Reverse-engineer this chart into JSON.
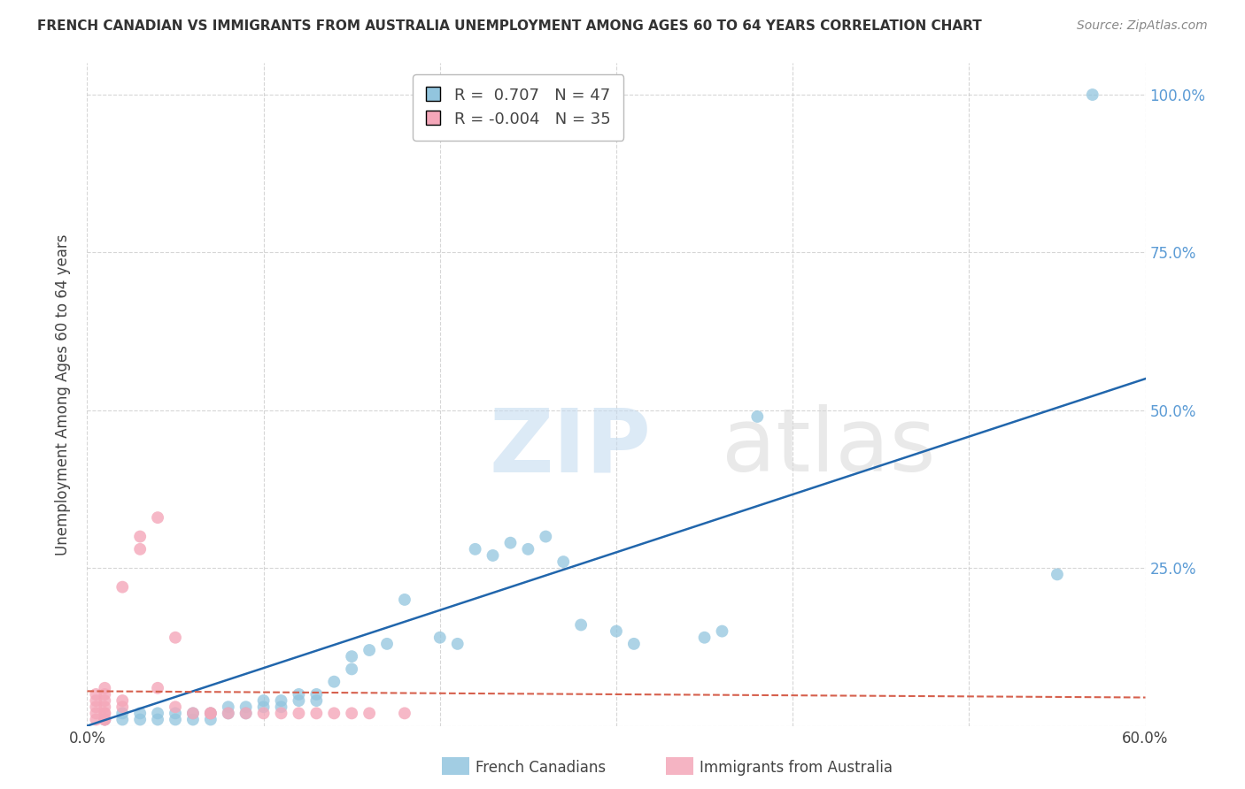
{
  "title": "FRENCH CANADIAN VS IMMIGRANTS FROM AUSTRALIA UNEMPLOYMENT AMONG AGES 60 TO 64 YEARS CORRELATION CHART",
  "source": "Source: ZipAtlas.com",
  "ylabel": "Unemployment Among Ages 60 to 64 years",
  "xlim": [
    0.0,
    0.6
  ],
  "ylim": [
    0.0,
    1.05
  ],
  "blue_color": "#92c5de",
  "pink_color": "#f4a7b9",
  "blue_line_color": "#2166ac",
  "pink_line_color": "#d6604d",
  "blue_R": 0.707,
  "blue_N": 47,
  "pink_R": -0.004,
  "pink_N": 35,
  "legend_label_blue": "French Canadians",
  "legend_label_pink": "Immigrants from Australia",
  "grid_color": "#cccccc",
  "background_color": "#ffffff",
  "right_axis_color": "#5b9bd5",
  "title_color": "#333333",
  "source_color": "#888888",
  "blue_scatter_x": [
    0.01,
    0.02,
    0.02,
    0.03,
    0.03,
    0.04,
    0.04,
    0.05,
    0.05,
    0.06,
    0.06,
    0.07,
    0.07,
    0.08,
    0.08,
    0.09,
    0.09,
    0.1,
    0.1,
    0.11,
    0.11,
    0.12,
    0.12,
    0.13,
    0.13,
    0.14,
    0.15,
    0.15,
    0.16,
    0.17,
    0.18,
    0.2,
    0.21,
    0.22,
    0.23,
    0.24,
    0.25,
    0.26,
    0.27,
    0.28,
    0.3,
    0.31,
    0.35,
    0.36,
    0.38,
    0.55,
    0.57
  ],
  "blue_scatter_y": [
    0.01,
    0.01,
    0.02,
    0.01,
    0.02,
    0.01,
    0.02,
    0.01,
    0.02,
    0.01,
    0.02,
    0.01,
    0.02,
    0.02,
    0.03,
    0.02,
    0.03,
    0.03,
    0.04,
    0.03,
    0.04,
    0.04,
    0.05,
    0.04,
    0.05,
    0.07,
    0.09,
    0.11,
    0.12,
    0.13,
    0.2,
    0.14,
    0.13,
    0.28,
    0.27,
    0.29,
    0.28,
    0.3,
    0.26,
    0.16,
    0.15,
    0.13,
    0.14,
    0.15,
    0.49,
    0.24,
    1.0
  ],
  "pink_scatter_x": [
    0.005,
    0.005,
    0.005,
    0.005,
    0.005,
    0.01,
    0.01,
    0.01,
    0.01,
    0.01,
    0.01,
    0.01,
    0.01,
    0.02,
    0.02,
    0.02,
    0.03,
    0.03,
    0.04,
    0.04,
    0.05,
    0.05,
    0.06,
    0.07,
    0.07,
    0.08,
    0.09,
    0.1,
    0.11,
    0.12,
    0.13,
    0.14,
    0.15,
    0.16,
    0.18
  ],
  "pink_scatter_y": [
    0.01,
    0.02,
    0.03,
    0.04,
    0.05,
    0.01,
    0.02,
    0.03,
    0.04,
    0.05,
    0.06,
    0.02,
    0.01,
    0.03,
    0.04,
    0.22,
    0.3,
    0.28,
    0.33,
    0.06,
    0.14,
    0.03,
    0.02,
    0.02,
    0.02,
    0.02,
    0.02,
    0.02,
    0.02,
    0.02,
    0.02,
    0.02,
    0.02,
    0.02,
    0.02
  ],
  "blue_trend_x": [
    0.0,
    0.6
  ],
  "blue_trend_y": [
    0.0,
    0.55
  ],
  "pink_trend_x": [
    0.0,
    0.6
  ],
  "pink_trend_y": [
    0.055,
    0.045
  ]
}
